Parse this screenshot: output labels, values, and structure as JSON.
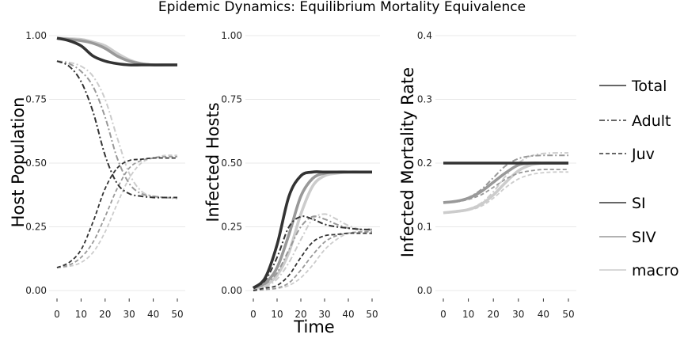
{
  "title": "Epidemic Dynamics: Equilibrium Mortality Equivalence",
  "xlabel": "Time",
  "colors": {
    "SI": "#333333",
    "SIV": "#999999",
    "macro": "#cccccc",
    "grid": "#e8e8e8"
  },
  "legend": {
    "linetype": [
      "Total",
      "Adult",
      "Juv"
    ],
    "model": [
      "SI",
      "SIV",
      "macro"
    ]
  },
  "chart_data": [
    {
      "type": "line",
      "ylabel": "Host Population",
      "xlim": [
        0,
        50
      ],
      "ylim": [
        0,
        1
      ],
      "xticks": [
        0,
        10,
        20,
        30,
        40,
        50
      ],
      "yticks": [
        "0.00",
        "0.25",
        "0.50",
        "0.75",
        "1.00"
      ],
      "x": [
        0,
        5,
        10,
        15,
        20,
        25,
        30,
        35,
        40,
        45,
        50
      ],
      "series": [
        {
          "model": "SI",
          "stage": "Total",
          "values": [
            0.99,
            0.98,
            0.96,
            0.92,
            0.9,
            0.89,
            0.885,
            0.885,
            0.885,
            0.885,
            0.885
          ]
        },
        {
          "model": "SIV",
          "stage": "Total",
          "values": [
            0.99,
            0.985,
            0.98,
            0.97,
            0.95,
            0.92,
            0.9,
            0.89,
            0.885,
            0.885,
            0.885
          ]
        },
        {
          "model": "macro",
          "stage": "Total",
          "values": [
            0.99,
            0.988,
            0.985,
            0.975,
            0.96,
            0.93,
            0.905,
            0.89,
            0.885,
            0.885,
            0.885
          ]
        },
        {
          "model": "SI",
          "stage": "Adult",
          "values": [
            0.9,
            0.88,
            0.82,
            0.7,
            0.53,
            0.42,
            0.38,
            0.37,
            0.365,
            0.365,
            0.365
          ]
        },
        {
          "model": "SIV",
          "stage": "Adult",
          "values": [
            0.9,
            0.89,
            0.86,
            0.8,
            0.68,
            0.52,
            0.42,
            0.38,
            0.37,
            0.365,
            0.365
          ]
        },
        {
          "model": "macro",
          "stage": "Adult",
          "values": [
            0.9,
            0.895,
            0.88,
            0.84,
            0.75,
            0.6,
            0.46,
            0.39,
            0.37,
            0.365,
            0.36
          ]
        },
        {
          "model": "SI",
          "stage": "Juv",
          "values": [
            0.09,
            0.11,
            0.16,
            0.27,
            0.4,
            0.48,
            0.51,
            0.515,
            0.52,
            0.52,
            0.52
          ]
        },
        {
          "model": "SIV",
          "stage": "Juv",
          "values": [
            0.09,
            0.1,
            0.13,
            0.19,
            0.29,
            0.4,
            0.48,
            0.51,
            0.52,
            0.525,
            0.525
          ]
        },
        {
          "model": "macro",
          "stage": "Juv",
          "values": [
            0.09,
            0.095,
            0.11,
            0.15,
            0.23,
            0.34,
            0.44,
            0.5,
            0.52,
            0.53,
            0.53
          ]
        }
      ]
    },
    {
      "type": "line",
      "ylabel": "Infected Hosts",
      "xlim": [
        0,
        50
      ],
      "ylim": [
        0,
        1
      ],
      "xticks": [
        0,
        10,
        20,
        30,
        40,
        50
      ],
      "yticks": [
        "0.00",
        "0.25",
        "0.50",
        "0.75",
        "1.00"
      ],
      "x": [
        0,
        5,
        10,
        15,
        20,
        25,
        30,
        35,
        40,
        45,
        50
      ],
      "series": [
        {
          "model": "SI",
          "stage": "Total",
          "values": [
            0.01,
            0.05,
            0.18,
            0.37,
            0.45,
            0.465,
            0.465,
            0.465,
            0.465,
            0.465,
            0.465
          ]
        },
        {
          "model": "SIV",
          "stage": "Total",
          "values": [
            0.01,
            0.03,
            0.09,
            0.22,
            0.37,
            0.44,
            0.46,
            0.465,
            0.465,
            0.465,
            0.465
          ]
        },
        {
          "model": "macro",
          "stage": "Total",
          "values": [
            0.01,
            0.02,
            0.06,
            0.15,
            0.3,
            0.41,
            0.45,
            0.46,
            0.465,
            0.465,
            0.465
          ]
        },
        {
          "model": "SI",
          "stage": "Adult",
          "values": [
            0.01,
            0.04,
            0.13,
            0.25,
            0.29,
            0.28,
            0.26,
            0.25,
            0.245,
            0.24,
            0.24
          ]
        },
        {
          "model": "SIV",
          "stage": "Adult",
          "values": [
            0.01,
            0.025,
            0.07,
            0.16,
            0.25,
            0.29,
            0.28,
            0.26,
            0.245,
            0.24,
            0.24
          ]
        },
        {
          "model": "macro",
          "stage": "Adult",
          "values": [
            0.005,
            0.015,
            0.045,
            0.11,
            0.2,
            0.28,
            0.3,
            0.28,
            0.255,
            0.24,
            0.235
          ]
        },
        {
          "model": "SI",
          "stage": "Juv",
          "values": [
            0.0,
            0.01,
            0.02,
            0.06,
            0.13,
            0.19,
            0.215,
            0.22,
            0.225,
            0.225,
            0.225
          ]
        },
        {
          "model": "SIV",
          "stage": "Juv",
          "values": [
            0.0,
            0.005,
            0.01,
            0.03,
            0.08,
            0.14,
            0.19,
            0.215,
            0.225,
            0.23,
            0.23
          ]
        },
        {
          "model": "macro",
          "stage": "Juv",
          "values": [
            0.0,
            0.003,
            0.008,
            0.02,
            0.05,
            0.1,
            0.16,
            0.2,
            0.225,
            0.23,
            0.235
          ]
        }
      ]
    },
    {
      "type": "line",
      "ylabel": "Infected Mortality Rate",
      "xlim": [
        0,
        50
      ],
      "ylim": [
        0,
        0.4
      ],
      "xticks": [
        0,
        10,
        20,
        30,
        40,
        50
      ],
      "yticks": [
        "0.0",
        "0.1",
        "0.2",
        "0.3",
        "0.4"
      ],
      "x": [
        0,
        5,
        10,
        15,
        20,
        25,
        30,
        35,
        40,
        45,
        50
      ],
      "series": [
        {
          "model": "SI",
          "stage": "Total",
          "values": [
            0.2,
            0.2,
            0.2,
            0.2,
            0.2,
            0.2,
            0.2,
            0.2,
            0.2,
            0.2,
            0.2
          ]
        },
        {
          "model": "SIV",
          "stage": "Total",
          "values": [
            0.138,
            0.14,
            0.145,
            0.155,
            0.17,
            0.185,
            0.197,
            0.2,
            0.2,
            0.2,
            0.2
          ]
        },
        {
          "model": "macro",
          "stage": "Total",
          "values": [
            0.122,
            0.124,
            0.127,
            0.135,
            0.15,
            0.17,
            0.188,
            0.197,
            0.2,
            0.2,
            0.2
          ]
        },
        {
          "model": "SIV",
          "stage": "Adult",
          "values": [
            0.138,
            0.14,
            0.146,
            0.158,
            0.177,
            0.196,
            0.207,
            0.211,
            0.212,
            0.212,
            0.212
          ]
        },
        {
          "model": "macro",
          "stage": "Adult",
          "values": [
            0.122,
            0.124,
            0.128,
            0.137,
            0.155,
            0.18,
            0.2,
            0.211,
            0.215,
            0.216,
            0.216
          ]
        },
        {
          "model": "SIV",
          "stage": "Juv",
          "values": [
            0.138,
            0.139,
            0.143,
            0.15,
            0.162,
            0.175,
            0.184,
            0.188,
            0.19,
            0.19,
            0.19
          ]
        },
        {
          "model": "macro",
          "stage": "Juv",
          "values": [
            0.122,
            0.123,
            0.126,
            0.132,
            0.145,
            0.162,
            0.175,
            0.182,
            0.185,
            0.186,
            0.186
          ]
        }
      ]
    }
  ]
}
